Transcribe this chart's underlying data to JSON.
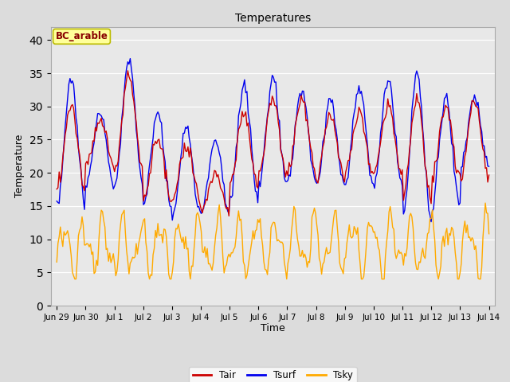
{
  "title": "Temperatures",
  "xlabel": "Time",
  "ylabel": "Temperature",
  "annotation": "BC_arable",
  "ylim": [
    0,
    42
  ],
  "yticks": [
    0,
    5,
    10,
    15,
    20,
    25,
    30,
    35,
    40
  ],
  "xtick_labels": [
    "Jun 29",
    "Jun 30",
    "Jul 1",
    "Jul 2",
    "Jul 3",
    "Jul 4",
    "Jul 5",
    "Jul 6",
    "Jul 7",
    "Jul 8",
    "Jul 9",
    "Jul 10",
    "Jul 11",
    "Jul 12",
    "Jul 13",
    "Jul 14"
  ],
  "tair_color": "#cc0000",
  "tsurf_color": "#0000ee",
  "tsky_color": "#ffaa00",
  "legend_labels": [
    "Tair",
    "Tsurf",
    "Tsky"
  ],
  "bg_color": "#e8e8e8",
  "plot_bg": "#dcdcdc",
  "annotation_bg": "#ffff99",
  "annotation_border": "#bbbb00",
  "annotation_text_color": "#880000",
  "fig_bg": "#dcdcdc"
}
